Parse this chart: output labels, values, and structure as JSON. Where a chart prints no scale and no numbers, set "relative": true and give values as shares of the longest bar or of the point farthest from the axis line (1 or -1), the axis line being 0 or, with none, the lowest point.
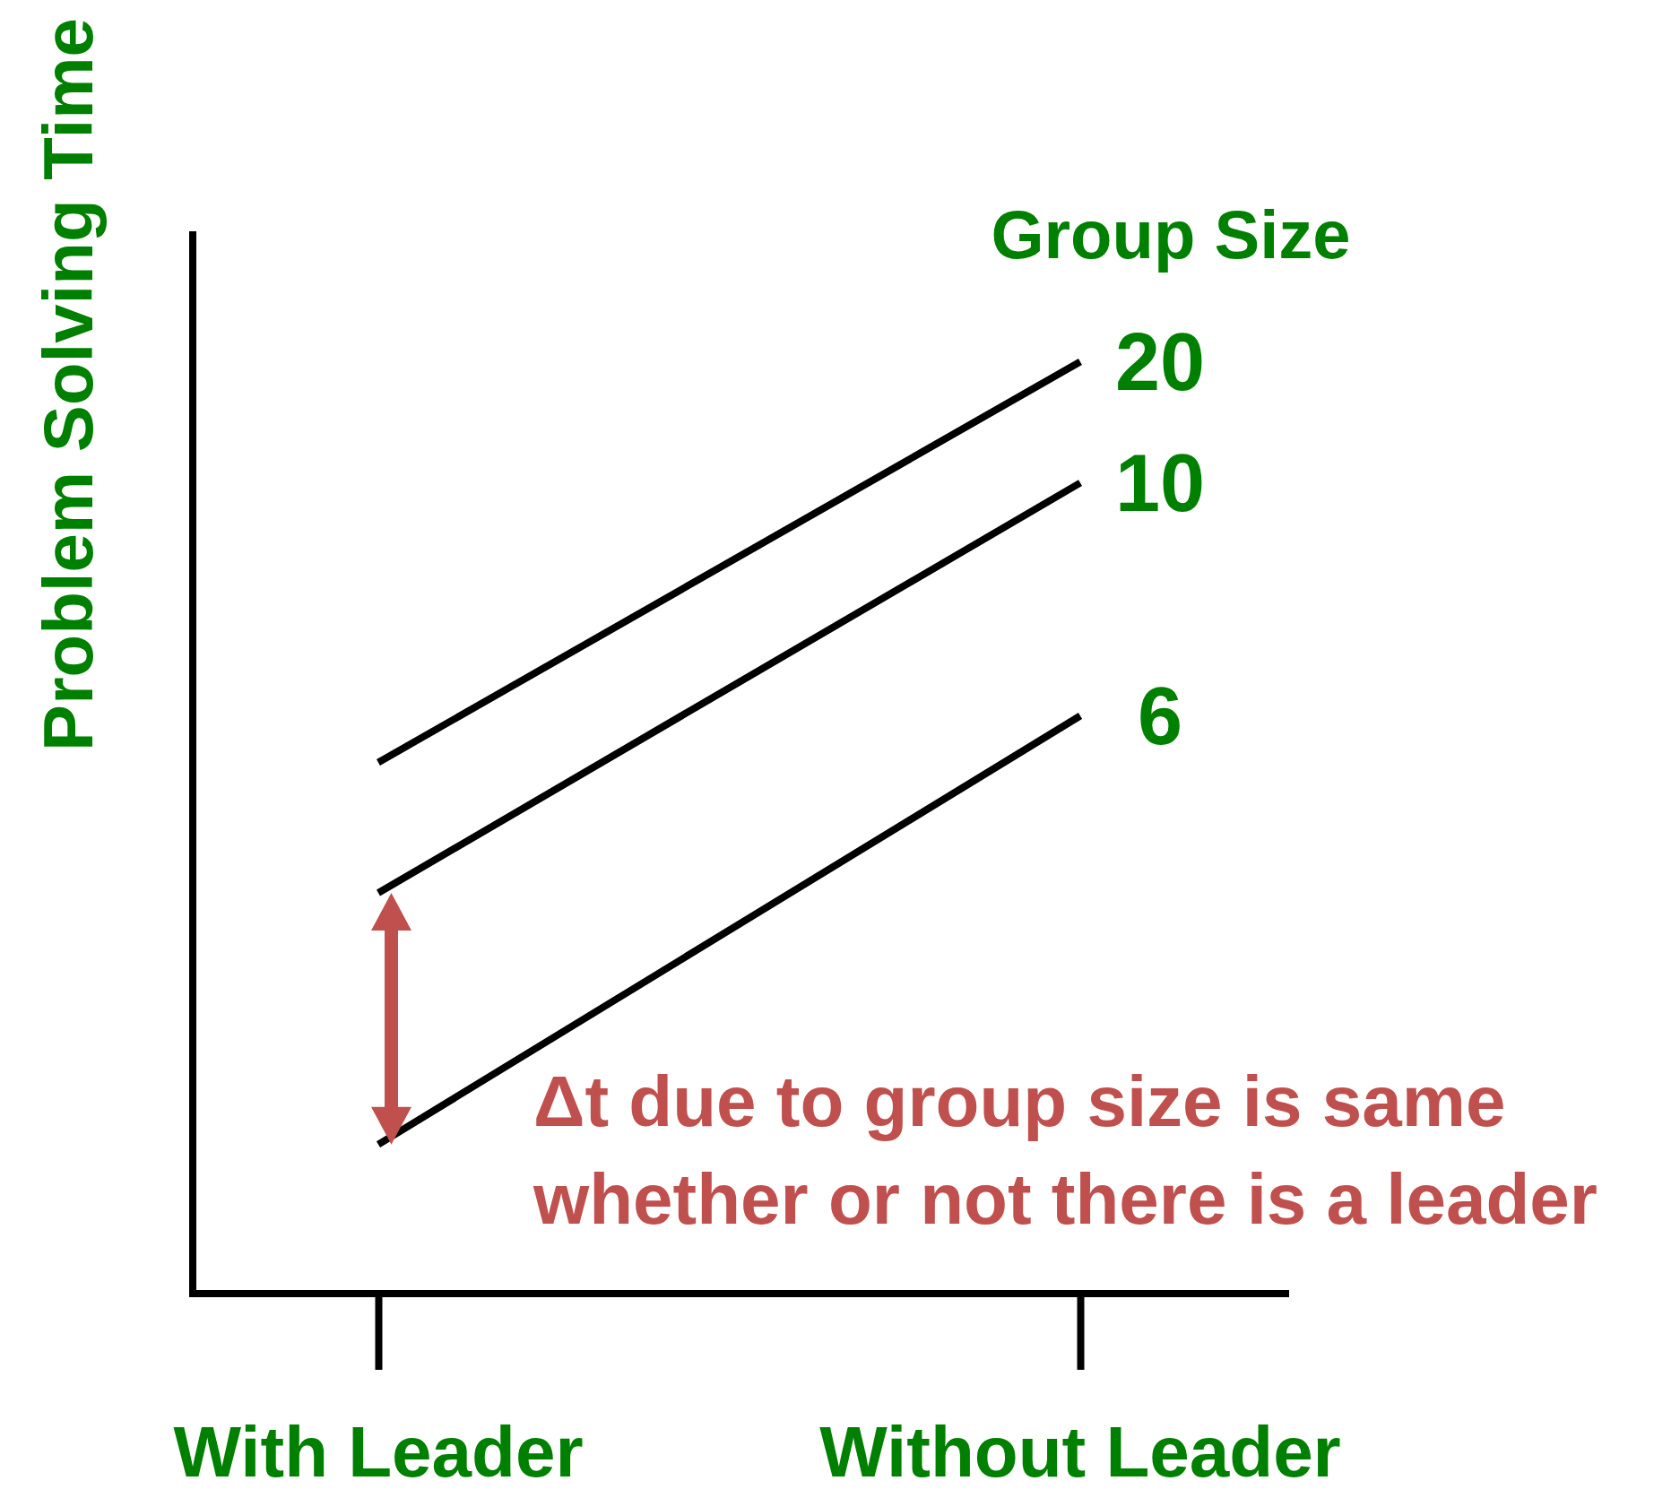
{
  "chart_data": {
    "type": "line",
    "ylabel": "Problem Solving Time",
    "legend_title": "Group Size",
    "categories": [
      "With Leader",
      "Without Leader"
    ],
    "relative": true,
    "marker": "none",
    "series": [
      {
        "name": "20",
        "color": "#000000",
        "values": [
          0.57,
          1
        ]
      },
      {
        "name": "10",
        "color": "#000000",
        "values": [
          0.43,
          0.87
        ]
      },
      {
        "name": "6",
        "color": "#000000",
        "values": [
          0.16,
          0.62
        ]
      }
    ],
    "annotations": [
      "Δt due to group size is same whether or not there is a leader"
    ]
  }
}
